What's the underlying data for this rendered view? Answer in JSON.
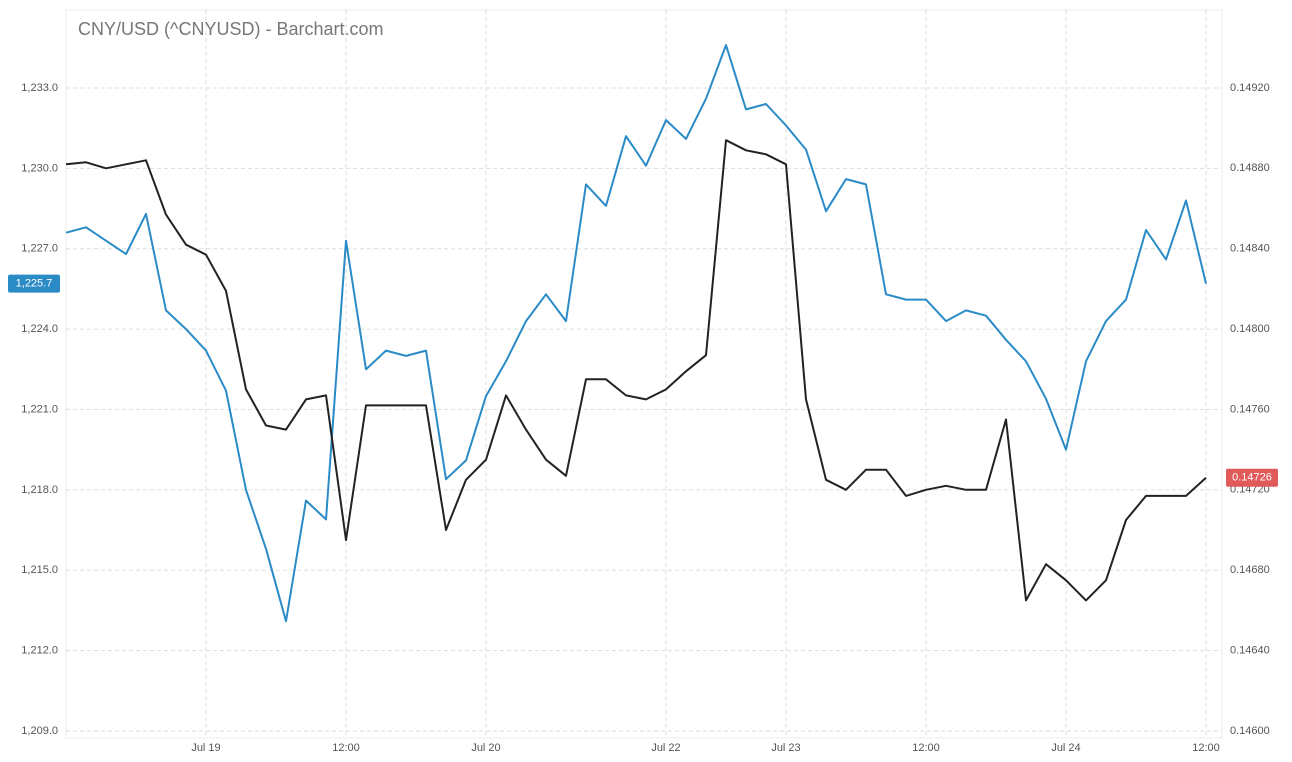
{
  "chart_data": {
    "type": "line",
    "title": "CNY/USD (^CNYUSD) - Barchart.com",
    "categories": [
      null,
      null,
      null,
      null,
      null,
      null,
      null,
      "Jul 19",
      null,
      null,
      null,
      null,
      null,
      null,
      "12:00",
      null,
      null,
      null,
      null,
      null,
      null,
      "Jul 20",
      null,
      null,
      null,
      null,
      null,
      null,
      null,
      null,
      "Jul 22",
      null,
      null,
      null,
      null,
      null,
      "Jul 23",
      null,
      null,
      null,
      null,
      null,
      null,
      "12:00",
      null,
      null,
      null,
      null,
      null,
      null,
      "Jul 24",
      null,
      null,
      null,
      null,
      null,
      null,
      "12:00"
    ],
    "series": [
      {
        "color": "#2a8bc7",
        "last_label": "1,225.7",
        "values": [
          1227.6,
          1227.8,
          1227.3,
          1226.8,
          1228.3,
          1224.7,
          1224.0,
          1223.2,
          1221.7,
          1218.0,
          1215.8,
          1213.1,
          1217.6,
          1216.9,
          1227.3,
          1222.5,
          1223.2,
          1223.0,
          1223.2,
          1218.4,
          1219.1,
          1221.5,
          1222.8,
          1224.3,
          1225.3,
          1224.3,
          1229.4,
          1228.6,
          1231.2,
          1230.1,
          1231.8,
          1231.1,
          1232.6,
          1234.6,
          1232.2,
          1232.4,
          1231.6,
          1230.7,
          1228.4,
          1229.6,
          1229.4,
          1225.3,
          1225.1,
          1225.1,
          1224.3,
          1224.7,
          1224.5,
          1223.6,
          1222.8,
          1221.4,
          1219.5,
          1222.8,
          1224.3,
          1225.1,
          1227.7,
          1226.6,
          1228.8,
          1225.7
        ]
      },
      {
        "color": "#222222",
        "axis": "y2",
        "last_label": "0.14726",
        "label_color": "#e05a5a",
        "values": [
          0.14882,
          0.14883,
          0.1488,
          0.14882,
          0.14884,
          0.14857,
          0.14842,
          0.14837,
          0.14819,
          0.1477,
          0.14752,
          0.1475,
          0.14765,
          0.14767,
          0.14695,
          0.14762,
          0.14762,
          0.14762,
          0.14762,
          0.147,
          0.14725,
          0.14735,
          0.14767,
          0.1475,
          0.14735,
          0.14727,
          0.14775,
          0.14775,
          0.14767,
          0.14765,
          0.1477,
          0.14779,
          0.14787,
          0.14894,
          0.14889,
          0.14887,
          0.14882,
          0.14765,
          0.14725,
          0.1472,
          0.1473,
          0.1473,
          0.14717,
          0.1472,
          0.14722,
          0.1472,
          0.1472,
          0.14755,
          0.14665,
          0.14683,
          0.14675,
          0.14665,
          0.14675,
          0.14705,
          0.14717,
          0.14717,
          0.14717,
          0.14726
        ]
      }
    ],
    "ylim": [
      1208.74,
      1235.91
    ],
    "yticks": [
      {
        "value": 1209,
        "label": "1,209.0"
      },
      {
        "value": 1212,
        "label": "1,212.0"
      },
      {
        "value": 1215,
        "label": "1,215.0"
      },
      {
        "value": 1218,
        "label": "1,218.0"
      },
      {
        "value": 1221,
        "label": "1,221.0"
      },
      {
        "value": 1224,
        "label": "1,224.0"
      },
      {
        "value": 1227,
        "label": "1,227.0"
      },
      {
        "value": 1230,
        "label": "1,230.0"
      },
      {
        "value": 1233,
        "label": "1,233.0"
      }
    ],
    "y2lim": [
      0.145965,
      0.149588
    ],
    "y2ticks": [
      {
        "value": 0.146,
        "label": "0.14600"
      },
      {
        "value": 0.1464,
        "label": "0.14640"
      },
      {
        "value": 0.1468,
        "label": "0.14680"
      },
      {
        "value": 0.1472,
        "label": "0.14720"
      },
      {
        "value": 0.1476,
        "label": "0.14760"
      },
      {
        "value": 0.148,
        "label": "0.14800"
      },
      {
        "value": 0.1484,
        "label": "0.14840"
      },
      {
        "value": 0.1488,
        "label": "0.14880"
      },
      {
        "value": 0.1492,
        "label": "0.14920"
      }
    ],
    "grid": true
  }
}
